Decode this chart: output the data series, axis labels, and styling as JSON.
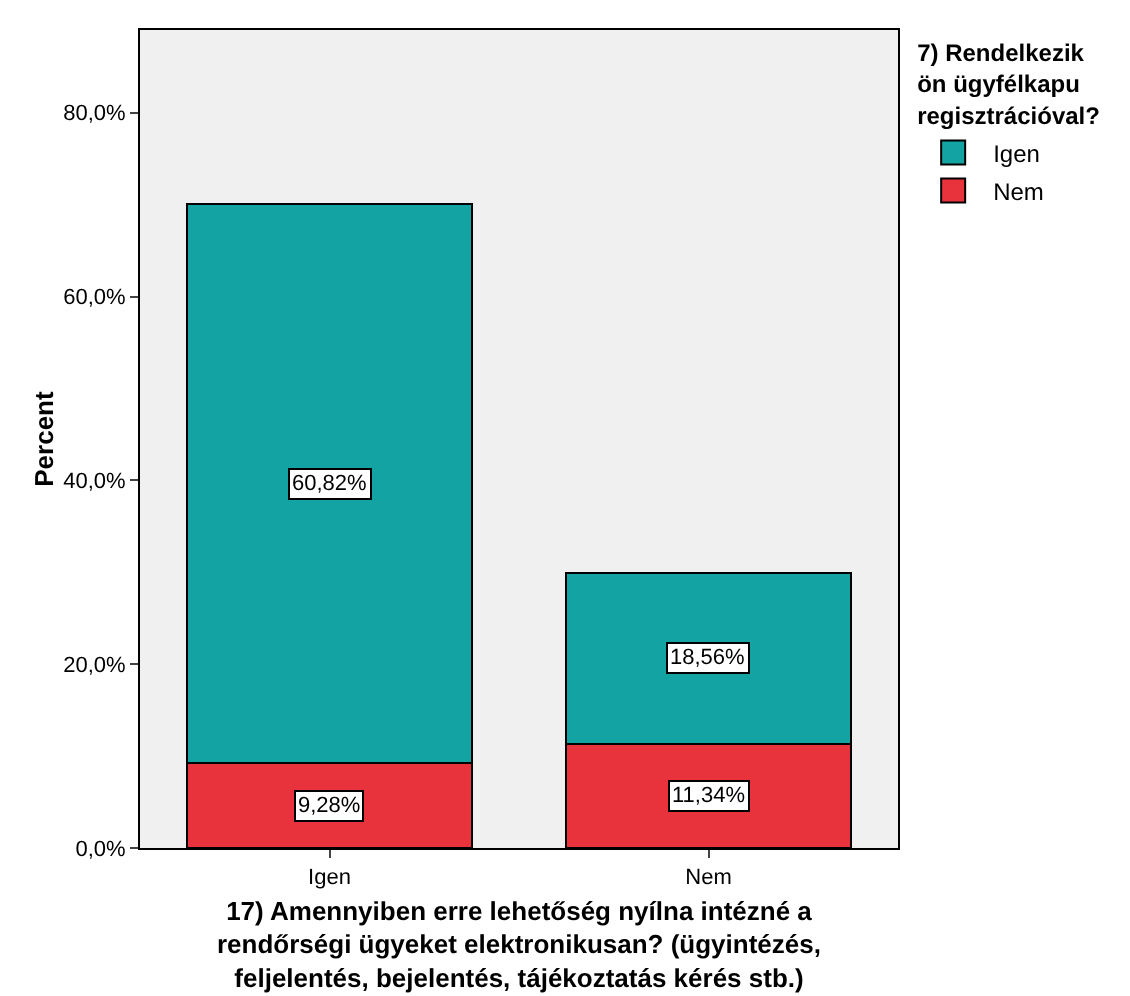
{
  "chart_data": {
    "type": "bar",
    "stacked": true,
    "categories": [
      "Igen",
      "Nem"
    ],
    "series": [
      {
        "name": "Nem",
        "color": "#e8323c",
        "values": [
          9.28,
          11.34
        ],
        "value_labels": [
          "9,28%",
          "11,34%"
        ]
      },
      {
        "name": "Igen",
        "color": "#13a3a3",
        "values": [
          60.82,
          18.56
        ],
        "value_labels": [
          "60,82%",
          "18,56%"
        ]
      }
    ],
    "xlabel": "17) Amennyiben erre lehetőség nyílna intézné a rendőrségi ügyeket elektronikusan? (ügyintézés, feljelentés, bejelentés, tájékoztatás kérés stb.)",
    "ylabel": "Percent",
    "legend_title": "7) Rendelkezik ön ügyfélkapu regisztrációval?",
    "legend": "top right",
    "grid": false,
    "ylim": [
      0,
      89
    ],
    "yticks": [
      {
        "value": 0,
        "label": "0,0%"
      },
      {
        "value": 20,
        "label": "20,0%"
      },
      {
        "value": 40,
        "label": "40,0%"
      },
      {
        "value": 60,
        "label": "60,0%"
      },
      {
        "value": 80,
        "label": "80,0%"
      }
    ]
  }
}
